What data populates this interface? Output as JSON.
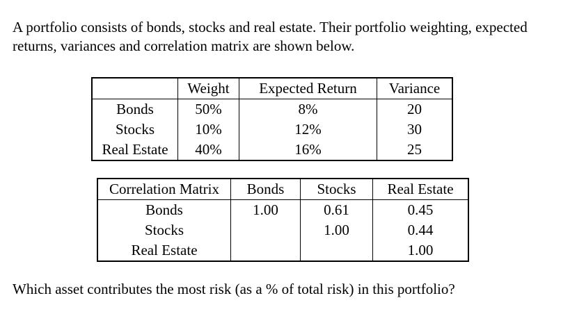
{
  "intro_line1": "A portfolio consists of bonds, stocks and real estate.  Their portfolio weighting, expected",
  "intro_line2": "returns, variances and correlation matrix are shown below.",
  "asset_table": {
    "headers": [
      "",
      "Weight",
      "Expected Return",
      "Variance"
    ],
    "rows": [
      {
        "asset": "Bonds",
        "weight": "50%",
        "expected_return": "8%",
        "variance": "20"
      },
      {
        "asset": "Stocks",
        "weight": "10%",
        "expected_return": "12%",
        "variance": "30"
      },
      {
        "asset": "Real Estate",
        "weight": "40%",
        "expected_return": "16%",
        "variance": "25"
      }
    ]
  },
  "correlation_table": {
    "headers": [
      "Correlation Matrix",
      "Bonds",
      "Stocks",
      "Real Estate"
    ],
    "rows": [
      {
        "label": "Bonds",
        "bonds": "1.00",
        "stocks": "0.61",
        "real_estate": "0.45"
      },
      {
        "label": "Stocks",
        "bonds": "",
        "stocks": "1.00",
        "real_estate": "0.44"
      },
      {
        "label": "Real Estate",
        "bonds": "",
        "stocks": "",
        "real_estate": "1.00"
      }
    ]
  },
  "question": "Which asset contributes the most risk (as a % of total risk) in this portfolio?"
}
